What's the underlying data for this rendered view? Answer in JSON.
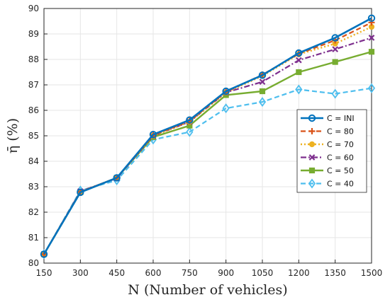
{
  "chart_data": {
    "type": "line",
    "xlabel": "N (Number of vehicles)",
    "ylabel": "η̄ (%)",
    "x": [
      150,
      300,
      450,
      600,
      750,
      900,
      1050,
      1200,
      1350,
      1500
    ],
    "xlim": [
      150,
      1500
    ],
    "ylim": [
      80,
      90
    ],
    "yticks": [
      80,
      81,
      82,
      83,
      84,
      85,
      86,
      87,
      88,
      89,
      90
    ],
    "grid": true,
    "legend_position": "middle-right",
    "series": [
      {
        "name": "C = INI",
        "color": "#0072BD",
        "dash": "",
        "marker": "circle",
        "width": 2.6,
        "values": [
          80.35,
          82.78,
          83.35,
          85.05,
          85.62,
          86.75,
          87.38,
          88.25,
          88.85,
          89.62
        ]
      },
      {
        "name": "C = 80",
        "color": "#D95319",
        "dash": "7,4",
        "marker": "plus",
        "width": 2.2,
        "values": [
          80.35,
          82.8,
          83.35,
          85.02,
          85.58,
          86.72,
          87.4,
          88.22,
          88.75,
          89.45
        ]
      },
      {
        "name": "C = 70",
        "color": "#EDB120",
        "dash": "2,3",
        "marker": "dot",
        "width": 2.4,
        "values": [
          80.35,
          82.8,
          83.35,
          85.0,
          85.55,
          86.7,
          87.35,
          88.2,
          88.62,
          89.28
        ]
      },
      {
        "name": "C = 60",
        "color": "#7E2F8E",
        "dash": "8,3,2,3",
        "marker": "x",
        "width": 2.2,
        "values": [
          80.35,
          82.82,
          83.33,
          85.0,
          85.55,
          86.7,
          87.12,
          87.97,
          88.4,
          88.85
        ]
      },
      {
        "name": "C = 50",
        "color": "#77AC30",
        "dash": "",
        "marker": "square",
        "width": 2.4,
        "values": [
          80.35,
          82.78,
          83.35,
          84.95,
          85.4,
          86.6,
          86.75,
          87.5,
          87.9,
          88.3
        ]
      },
      {
        "name": "C = 40",
        "color": "#4DBEEE",
        "dash": "7,4",
        "marker": "diamond",
        "width": 2.2,
        "values": [
          80.35,
          82.85,
          83.25,
          84.85,
          85.15,
          86.08,
          86.33,
          86.82,
          86.65,
          86.87
        ]
      }
    ]
  }
}
